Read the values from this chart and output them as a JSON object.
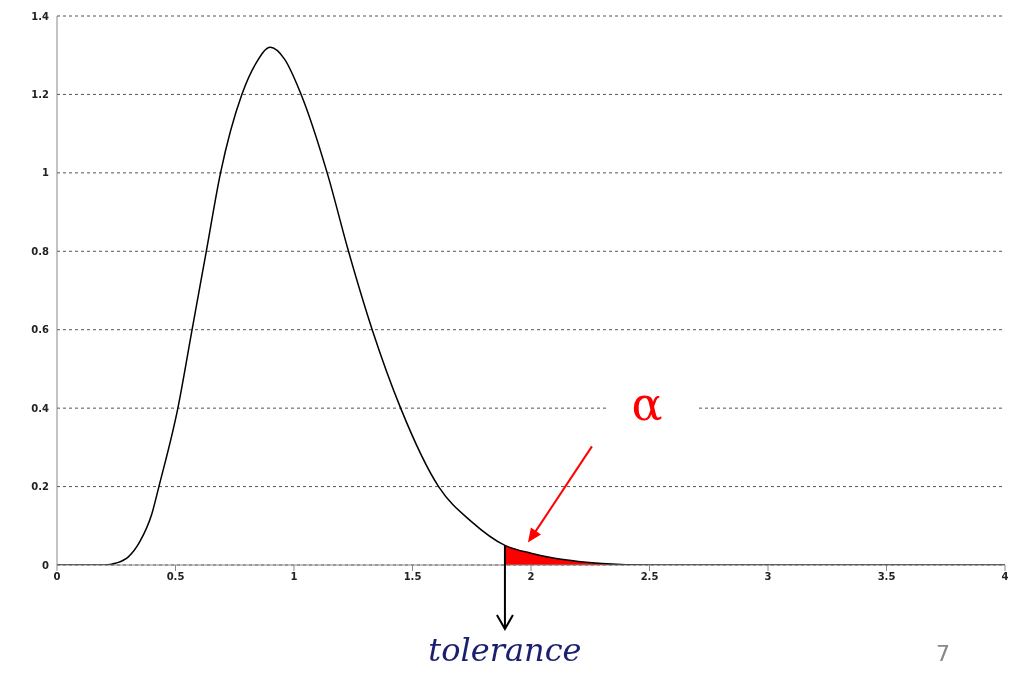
{
  "chart_data": {
    "type": "line",
    "xlim": [
      0,
      4
    ],
    "xticks": [
      0,
      0.5,
      1,
      1.5,
      2,
      2.5,
      3,
      3.5,
      4
    ],
    "ylim": [
      0,
      1.4
    ],
    "yticks": [
      0,
      0.2,
      0.4,
      0.6,
      0.8,
      1,
      1.2,
      1.4
    ],
    "grid": "y",
    "marker": "none",
    "line_style": "solid",
    "legend": false,
    "series": [
      {
        "color": "#000000",
        "x": [
          0,
          0.1,
          0.2,
          0.25,
          0.3,
          0.35,
          0.4,
          0.43,
          0.51,
          0.57,
          0.63,
          0.69,
          0.78,
          0.84,
          0.9,
          0.96,
          1.03,
          1.14,
          1.23,
          1.33,
          1.45,
          1.61,
          1.75,
          1.89,
          2,
          2.1,
          2.2,
          2.3,
          2.5,
          3,
          4
        ],
        "values": [
          0,
          0,
          0,
          0.005,
          0.02,
          0.06,
          0.13,
          0.2,
          0.4,
          0.6,
          0.8,
          1,
          1.2,
          1.28,
          1.32,
          1.29,
          1.2,
          1,
          0.8,
          0.6,
          0.4,
          0.2,
          0.11,
          0.05,
          0.03,
          0.017,
          0.009,
          0.004,
          0,
          0,
          0
        ]
      },
      {
        "type": "area",
        "color": "#ff0000",
        "x": [
          1.89,
          2,
          2.1,
          2.2,
          2.3,
          2.5
        ],
        "values": [
          0.05,
          0.03,
          0.017,
          0.009,
          0.004,
          0
        ]
      }
    ],
    "annotations": [
      "α",
      {
        "text": "tolerance",
        "x": 1.89,
        "y": 0
      },
      "7"
    ]
  }
}
